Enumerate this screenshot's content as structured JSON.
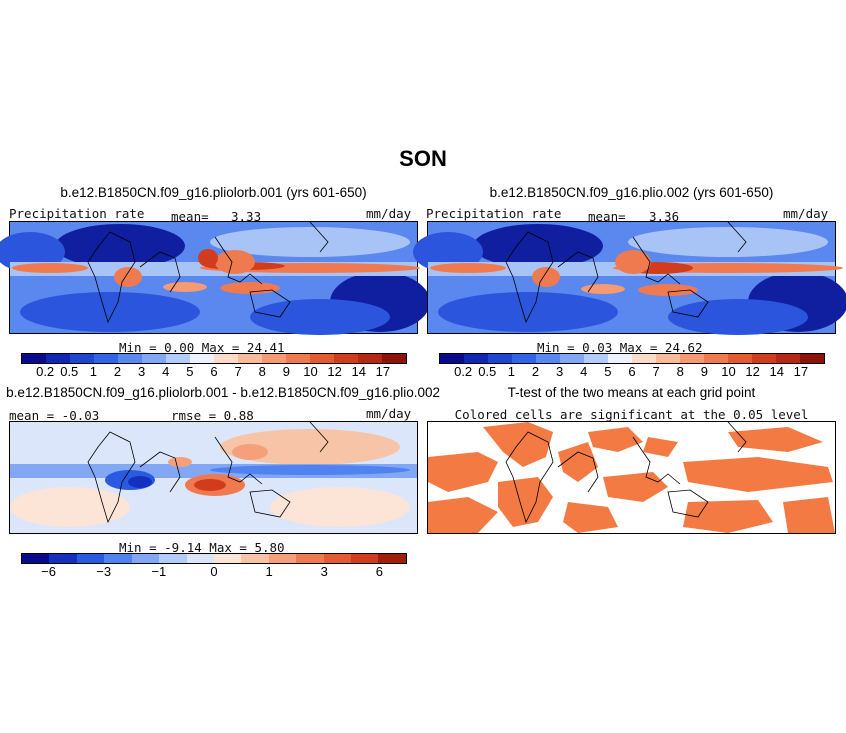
{
  "figure_title": "SON",
  "panels": {
    "p1": {
      "title": "b.e12.B1850CN.f09_g16.pliolorb.001 (yrs 601-650)",
      "variable": "Precipitation rate",
      "mean_label": "mean=",
      "mean_value": "3.33",
      "units": "mm/day",
      "minmax": "Min =    0.00 Max =  24.41"
    },
    "p2": {
      "title": "b.e12.B1850CN.f09_g16.plio.002 (yrs 601-650)",
      "variable": "Precipitation rate",
      "mean_label": "mean=",
      "mean_value": "3.36",
      "units": "mm/day",
      "minmax": "Min =    0.03 Max =  24.62"
    },
    "p3": {
      "title": "b.e12.B1850CN.f09_g16.pliolorb.001 - b.e12.B1850CN.f09_g16.plio.002",
      "mean_text": "mean = -0.03",
      "rmse_text": "rmse =   0.88",
      "units": "mm/day",
      "minmax": "Min =  -9.14 Max =    5.80"
    },
    "p4": {
      "title": "T-test of the two means at each grid point",
      "subtitle": "Colored cells are significant at the 0.05 level"
    }
  },
  "colorbars": {
    "precip": {
      "colors": [
        "#0a0a8c",
        "#1026b4",
        "#1e46d2",
        "#3264e8",
        "#5a87f0",
        "#82a8f5",
        "#b4ccfa",
        "#eef2fc",
        "#fcdcc8",
        "#f8bc9a",
        "#f59a72",
        "#f07a50",
        "#e45a32",
        "#d23c1e",
        "#b42814",
        "#8c1408"
      ],
      "ticks": [
        "0.2",
        "0.5",
        "1",
        "2",
        "3",
        "4",
        "5",
        "6",
        "7",
        "8",
        "9",
        "10",
        "12",
        "14",
        "17"
      ]
    },
    "diff": {
      "colors": [
        "#0a0a8c",
        "#1430be",
        "#2a5ae0",
        "#5082f0",
        "#82a8f5",
        "#b4ccfa",
        "#dce6fa",
        "#fce4d6",
        "#f8c4a8",
        "#f5a07a",
        "#f07a50",
        "#e45a32",
        "#d23c1e",
        "#a01e0a"
      ],
      "ticks": [
        "−6",
        "−3",
        "−1",
        "0",
        "1",
        "3",
        "6"
      ],
      "tick_after_index": [
        1,
        3,
        5,
        7,
        9,
        11,
        13
      ]
    }
  },
  "map_colors": {
    "deep_blue": "#0f1fa0",
    "blue": "#2a55dc",
    "mid_blue": "#5a88ee",
    "light_blue": "#a8c4f6",
    "pale": "#eef2fc",
    "orange": "#f07a50",
    "red": "#d23c1e",
    "ttest_orange": "#f37a42"
  }
}
